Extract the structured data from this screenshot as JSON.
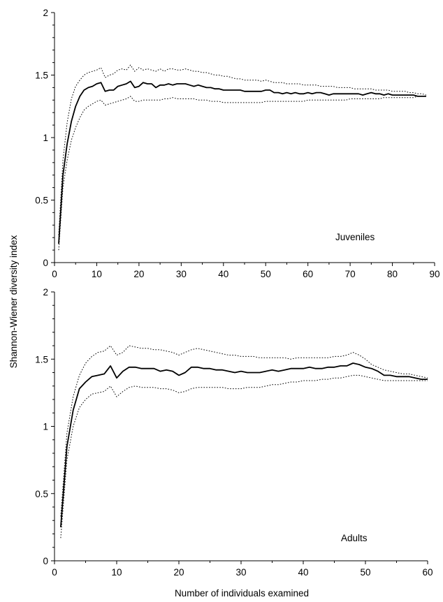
{
  "figure": {
    "shared_ylabel": "Shannon-Wiener diversity index",
    "shared_xlabel": "Number of individuals examined"
  },
  "chart_data": [
    {
      "type": "line",
      "title": "",
      "panel_label": "Juveniles",
      "xlabel": "",
      "ylabel": "Shannon-Wiener diversity index",
      "xlim": [
        0,
        90
      ],
      "ylim": [
        0,
        2
      ],
      "xticks": [
        0,
        10,
        20,
        30,
        40,
        50,
        60,
        70,
        80,
        90
      ],
      "yticks": [
        0,
        0.5,
        1,
        1.5,
        2
      ],
      "grid": false,
      "x": [
        1,
        2,
        3,
        4,
        5,
        6,
        7,
        8,
        9,
        10,
        11,
        12,
        13,
        14,
        15,
        16,
        17,
        18,
        19,
        20,
        21,
        22,
        23,
        24,
        25,
        26,
        27,
        28,
        29,
        30,
        31,
        32,
        33,
        34,
        35,
        36,
        37,
        38,
        39,
        40,
        41,
        42,
        43,
        44,
        45,
        46,
        47,
        48,
        49,
        50,
        51,
        52,
        53,
        54,
        55,
        56,
        57,
        58,
        59,
        60,
        61,
        62,
        63,
        64,
        65,
        66,
        67,
        68,
        69,
        70,
        71,
        72,
        73,
        74,
        75,
        76,
        77,
        78,
        79,
        80,
        81,
        82,
        83,
        84,
        85,
        86,
        87,
        88
      ],
      "series": [
        {
          "role": "upper",
          "values": [
            0.22,
            0.82,
            1.12,
            1.31,
            1.41,
            1.46,
            1.5,
            1.52,
            1.53,
            1.54,
            1.56,
            1.48,
            1.5,
            1.51,
            1.54,
            1.55,
            1.54,
            1.58,
            1.53,
            1.56,
            1.54,
            1.55,
            1.54,
            1.53,
            1.55,
            1.53,
            1.55,
            1.55,
            1.54,
            1.54,
            1.55,
            1.54,
            1.53,
            1.53,
            1.52,
            1.52,
            1.51,
            1.5,
            1.5,
            1.49,
            1.49,
            1.48,
            1.47,
            1.47,
            1.46,
            1.46,
            1.46,
            1.46,
            1.45,
            1.46,
            1.45,
            1.44,
            1.44,
            1.44,
            1.43,
            1.43,
            1.43,
            1.43,
            1.42,
            1.42,
            1.42,
            1.42,
            1.41,
            1.41,
            1.41,
            1.41,
            1.4,
            1.4,
            1.4,
            1.4,
            1.39,
            1.39,
            1.39,
            1.39,
            1.39,
            1.38,
            1.38,
            1.38,
            1.38,
            1.37,
            1.37,
            1.37,
            1.37,
            1.36,
            1.36,
            1.35,
            1.35,
            1.34
          ]
        },
        {
          "role": "mean",
          "values": [
            0.15,
            0.7,
            0.95,
            1.13,
            1.25,
            1.33,
            1.38,
            1.4,
            1.41,
            1.43,
            1.44,
            1.37,
            1.38,
            1.38,
            1.41,
            1.42,
            1.43,
            1.45,
            1.4,
            1.41,
            1.44,
            1.43,
            1.43,
            1.4,
            1.42,
            1.42,
            1.43,
            1.42,
            1.43,
            1.43,
            1.43,
            1.42,
            1.41,
            1.42,
            1.41,
            1.4,
            1.4,
            1.39,
            1.39,
            1.38,
            1.38,
            1.38,
            1.38,
            1.38,
            1.37,
            1.37,
            1.37,
            1.37,
            1.37,
            1.38,
            1.38,
            1.36,
            1.36,
            1.35,
            1.36,
            1.35,
            1.36,
            1.35,
            1.35,
            1.36,
            1.35,
            1.36,
            1.36,
            1.35,
            1.34,
            1.35,
            1.35,
            1.35,
            1.35,
            1.35,
            1.35,
            1.35,
            1.34,
            1.35,
            1.36,
            1.35,
            1.35,
            1.34,
            1.35,
            1.34,
            1.34,
            1.34,
            1.34,
            1.34,
            1.34,
            1.33,
            1.33,
            1.33
          ]
        },
        {
          "role": "lower",
          "values": [
            0.1,
            0.6,
            0.82,
            0.98,
            1.08,
            1.16,
            1.22,
            1.25,
            1.27,
            1.29,
            1.3,
            1.26,
            1.27,
            1.28,
            1.29,
            1.3,
            1.31,
            1.33,
            1.29,
            1.29,
            1.3,
            1.3,
            1.3,
            1.3,
            1.3,
            1.31,
            1.31,
            1.32,
            1.31,
            1.31,
            1.31,
            1.31,
            1.31,
            1.3,
            1.3,
            1.3,
            1.29,
            1.29,
            1.29,
            1.28,
            1.28,
            1.28,
            1.28,
            1.28,
            1.28,
            1.28,
            1.28,
            1.28,
            1.28,
            1.29,
            1.29,
            1.29,
            1.29,
            1.29,
            1.29,
            1.29,
            1.29,
            1.29,
            1.29,
            1.3,
            1.3,
            1.3,
            1.3,
            1.3,
            1.3,
            1.3,
            1.3,
            1.3,
            1.3,
            1.31,
            1.31,
            1.31,
            1.31,
            1.31,
            1.31,
            1.31,
            1.31,
            1.32,
            1.32,
            1.32,
            1.32,
            1.32,
            1.32,
            1.32,
            1.32,
            1.33,
            1.33,
            1.33
          ]
        }
      ]
    },
    {
      "type": "line",
      "title": "",
      "panel_label": "Adults",
      "xlabel": "Number of individuals examined",
      "ylabel": "Shannon-Wiener diversity index",
      "xlim": [
        0,
        60
      ],
      "ylim": [
        0,
        2
      ],
      "xticks": [
        0,
        10,
        20,
        30,
        40,
        50,
        60
      ],
      "yticks": [
        0,
        0.5,
        1,
        1.5,
        2
      ],
      "grid": false,
      "x": [
        1,
        2,
        3,
        4,
        5,
        6,
        7,
        8,
        9,
        10,
        11,
        12,
        13,
        14,
        15,
        16,
        17,
        18,
        19,
        20,
        21,
        22,
        23,
        24,
        25,
        26,
        27,
        28,
        29,
        30,
        31,
        32,
        33,
        34,
        35,
        36,
        37,
        38,
        39,
        40,
        41,
        42,
        43,
        44,
        45,
        46,
        47,
        48,
        49,
        50,
        51,
        52,
        53,
        54,
        55,
        56,
        57,
        58,
        59,
        60
      ],
      "series": [
        {
          "role": "upper",
          "values": [
            0.33,
            0.95,
            1.22,
            1.38,
            1.47,
            1.52,
            1.55,
            1.56,
            1.6,
            1.53,
            1.55,
            1.6,
            1.59,
            1.58,
            1.58,
            1.57,
            1.57,
            1.56,
            1.55,
            1.53,
            1.55,
            1.57,
            1.58,
            1.57,
            1.56,
            1.55,
            1.54,
            1.53,
            1.53,
            1.52,
            1.52,
            1.52,
            1.51,
            1.51,
            1.51,
            1.51,
            1.51,
            1.5,
            1.51,
            1.51,
            1.51,
            1.51,
            1.51,
            1.51,
            1.52,
            1.52,
            1.53,
            1.55,
            1.53,
            1.5,
            1.46,
            1.44,
            1.42,
            1.41,
            1.4,
            1.39,
            1.39,
            1.38,
            1.37,
            1.36
          ]
        },
        {
          "role": "mean",
          "values": [
            0.25,
            0.85,
            1.12,
            1.28,
            1.33,
            1.37,
            1.38,
            1.39,
            1.45,
            1.36,
            1.41,
            1.44,
            1.44,
            1.43,
            1.43,
            1.43,
            1.41,
            1.42,
            1.41,
            1.38,
            1.4,
            1.44,
            1.44,
            1.43,
            1.43,
            1.42,
            1.42,
            1.41,
            1.4,
            1.41,
            1.4,
            1.4,
            1.4,
            1.41,
            1.42,
            1.41,
            1.42,
            1.43,
            1.43,
            1.43,
            1.44,
            1.43,
            1.43,
            1.44,
            1.44,
            1.45,
            1.45,
            1.47,
            1.46,
            1.44,
            1.43,
            1.41,
            1.38,
            1.38,
            1.37,
            1.37,
            1.37,
            1.36,
            1.35,
            1.35
          ]
        },
        {
          "role": "lower",
          "values": [
            0.17,
            0.75,
            1.0,
            1.14,
            1.2,
            1.24,
            1.25,
            1.26,
            1.3,
            1.22,
            1.26,
            1.29,
            1.3,
            1.29,
            1.29,
            1.29,
            1.28,
            1.28,
            1.27,
            1.25,
            1.26,
            1.28,
            1.29,
            1.29,
            1.29,
            1.29,
            1.29,
            1.28,
            1.28,
            1.28,
            1.29,
            1.29,
            1.29,
            1.3,
            1.31,
            1.31,
            1.32,
            1.33,
            1.33,
            1.34,
            1.34,
            1.34,
            1.35,
            1.35,
            1.36,
            1.36,
            1.37,
            1.38,
            1.38,
            1.37,
            1.36,
            1.35,
            1.34,
            1.34,
            1.34,
            1.34,
            1.34,
            1.34,
            1.34,
            1.34
          ]
        }
      ]
    }
  ]
}
